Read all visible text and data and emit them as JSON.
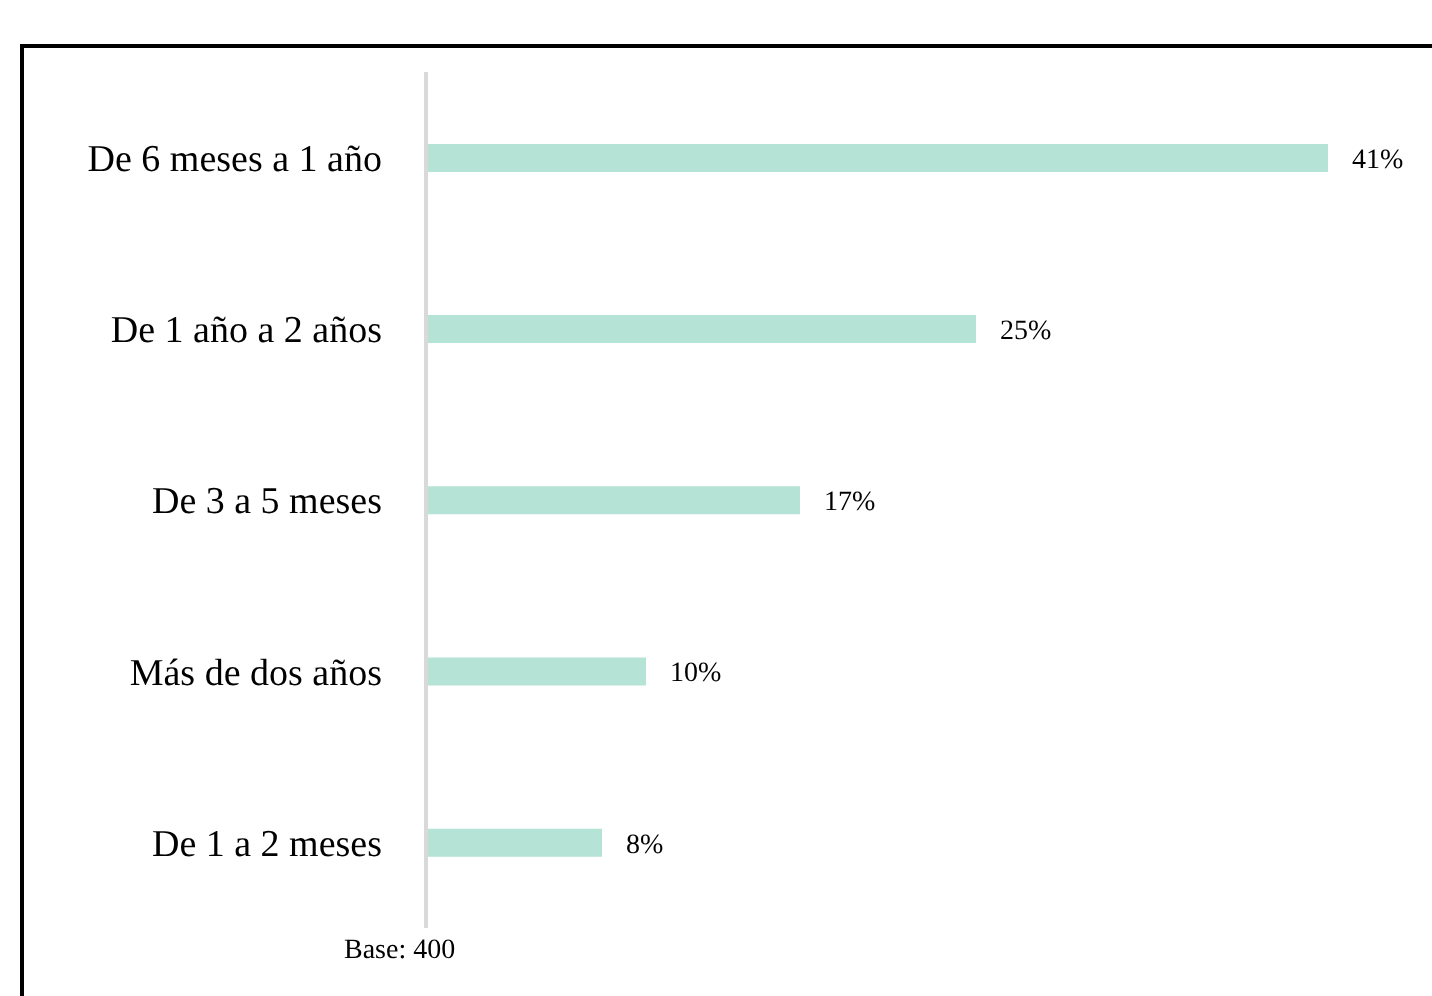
{
  "chart_data": {
    "type": "bar",
    "orientation": "horizontal",
    "categories": [
      "De 6 meses a 1 año",
      "De 1 año a 2 años",
      "De 3 a 5 meses",
      "Más de dos años",
      "De 1 a 2 meses"
    ],
    "values": [
      41,
      25,
      17,
      10,
      8
    ],
    "value_labels": [
      "41%",
      "25%",
      "17%",
      "10%",
      "8%"
    ],
    "color": "#b5e3d5",
    "annotations": [
      "Base: 400"
    ]
  }
}
